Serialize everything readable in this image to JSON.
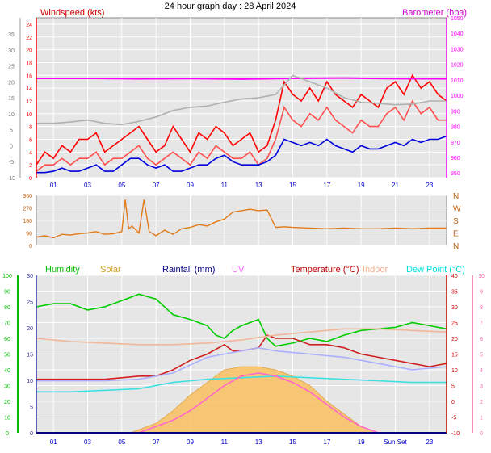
{
  "chart_data": [
    {
      "type": "line",
      "title": "24 hour graph day : 28 April 2024",
      "left_label": "Windspeed (kts)",
      "right_label": "Barometer (hpa)",
      "xlim": [
        0,
        24
      ],
      "x_ticks": [
        "01",
        "03",
        "05",
        "07",
        "09",
        "11",
        "13",
        "15",
        "17",
        "19",
        "21",
        "23"
      ],
      "y_left_outer_ticks": [
        "35",
        "30",
        "25",
        "20",
        "15",
        "10",
        "5",
        "0",
        "-5",
        "-10"
      ],
      "y_left_ticks": [
        "24",
        "22",
        "20",
        "18",
        "16",
        "14",
        "12",
        "10",
        "8",
        "6",
        "4",
        "2",
        "0"
      ],
      "ylim": [
        0,
        25
      ],
      "y_right_ticks": [
        "1050",
        "1040",
        "1030",
        "1020",
        "1010",
        "1000",
        "990",
        "980",
        "970",
        "960",
        "950"
      ],
      "y2lim": [
        947,
        1050
      ],
      "grid": true,
      "series": [
        {
          "name": "Wind gust",
          "color": "#ff0000",
          "axis": "left",
          "x": [
            0,
            0.5,
            1,
            1.5,
            2,
            2.5,
            3,
            3.5,
            4,
            4.5,
            5,
            5.5,
            6,
            6.5,
            7,
            7.5,
            8,
            8.5,
            9,
            9.5,
            10,
            10.5,
            11,
            11.5,
            12,
            12.5,
            13,
            13.5,
            14,
            14.5,
            15,
            15.5,
            16,
            16.5,
            17,
            17.5,
            18,
            18.5,
            19,
            19.5,
            20,
            20.5,
            21,
            21.5,
            22,
            22.5,
            23,
            23.5,
            24
          ],
          "y": [
            2,
            4,
            3,
            5,
            4,
            6,
            6,
            7,
            4,
            5,
            6,
            7,
            8,
            6,
            4,
            5,
            8,
            6,
            4,
            7,
            6,
            8,
            7,
            5,
            6,
            7,
            4,
            5,
            9,
            15,
            13,
            12,
            14,
            12,
            15,
            13,
            12,
            11,
            13,
            12,
            11,
            14,
            15,
            13,
            16,
            14,
            15,
            13,
            12
          ]
        },
        {
          "name": "Wind speed",
          "color": "#ff5050",
          "axis": "left",
          "x": [
            0,
            0.5,
            1,
            1.5,
            2,
            2.5,
            3,
            3.5,
            4,
            4.5,
            5,
            5.5,
            6,
            6.5,
            7,
            7.5,
            8,
            8.5,
            9,
            9.5,
            10,
            10.5,
            11,
            11.5,
            12,
            12.5,
            13,
            13.5,
            14,
            14.5,
            15,
            15.5,
            16,
            16.5,
            17,
            17.5,
            18,
            18.5,
            19,
            19.5,
            20,
            20.5,
            21,
            21.5,
            22,
            22.5,
            23,
            23.5,
            24
          ],
          "y": [
            1,
            2,
            2,
            3,
            2,
            3,
            3,
            4,
            2,
            3,
            3,
            4,
            5,
            3,
            2,
            3,
            4,
            3,
            2,
            4,
            3,
            5,
            4,
            3,
            3,
            4,
            2,
            3,
            6,
            11,
            9,
            8,
            10,
            9,
            11,
            9,
            8,
            7,
            9,
            8,
            8,
            10,
            11,
            9,
            12,
            10,
            11,
            9,
            9
          ]
        },
        {
          "name": "Average wind",
          "color": "#0000dd",
          "axis": "left",
          "x": [
            0,
            0.5,
            1,
            1.5,
            2,
            2.5,
            3,
            3.5,
            4,
            4.5,
            5,
            5.5,
            6,
            6.5,
            7,
            7.5,
            8,
            8.5,
            9,
            9.5,
            10,
            10.5,
            11,
            11.5,
            12,
            12.5,
            13,
            13.5,
            14,
            14.5,
            15,
            15.5,
            16,
            16.5,
            17,
            17.5,
            18,
            18.5,
            19,
            19.5,
            20,
            20.5,
            21,
            21.5,
            22,
            22.5,
            23,
            23.5,
            24
          ],
          "y": [
            0.8,
            0.8,
            1,
            1.5,
            1,
            1,
            1.5,
            2,
            1,
            1,
            2,
            3,
            3,
            2,
            1.5,
            2,
            1,
            1,
            1.5,
            2,
            2,
            3,
            3.5,
            2.5,
            2,
            2,
            2,
            2.5,
            3.5,
            6,
            5.5,
            5,
            5.5,
            5,
            6,
            5,
            4.5,
            4,
            5,
            4.5,
            4.5,
            5,
            5.5,
            5,
            6,
            5.5,
            6,
            6,
            6.5
          ]
        },
        {
          "name": "Barometer",
          "color": "#ff00ff",
          "axis": "right",
          "x": [
            0,
            3,
            6,
            9,
            12,
            15,
            18,
            21,
            24
          ],
          "y": [
            1011,
            1011,
            1010.7,
            1010.9,
            1010.5,
            1011,
            1011.2,
            1010.8,
            1010.7
          ]
        },
        {
          "name": "Barometer (grey)",
          "color": "#b0b0b0",
          "axis": "left",
          "x": [
            0,
            1,
            2,
            3,
            4,
            5,
            6,
            7,
            8,
            9,
            10,
            11,
            12,
            13,
            14,
            15,
            16,
            17,
            18,
            19,
            20,
            21,
            22,
            23,
            24
          ],
          "y": [
            8.5,
            8.5,
            8.7,
            9,
            8.5,
            8.3,
            8.8,
            9.5,
            10.5,
            11,
            11.2,
            11.8,
            12.3,
            12.5,
            13,
            16,
            15,
            14,
            12.5,
            11.8,
            11.6,
            11.4,
            11.5,
            12,
            12
          ]
        }
      ]
    },
    {
      "type": "line",
      "title": "",
      "ylabel": "",
      "xlim": [
        0,
        24
      ],
      "y_ticks": [
        "360",
        "270",
        "180",
        "90",
        "0"
      ],
      "ylim": [
        0,
        360
      ],
      "compass_labels": [
        "N",
        "W",
        "S",
        "E",
        "N"
      ],
      "grid": true,
      "series": [
        {
          "name": "Wind direction",
          "color": "#e07a1a",
          "x": [
            0,
            0.5,
            1,
            1.5,
            2,
            2.5,
            3,
            3.5,
            4,
            4.5,
            5,
            5.2,
            5.4,
            5.6,
            6,
            6.3,
            6.6,
            7,
            7.5,
            8,
            8.5,
            9,
            9.5,
            10,
            10.5,
            11,
            11.5,
            12,
            12.5,
            13,
            13.5,
            14,
            14.5,
            15,
            16,
            17,
            18,
            19,
            20,
            21,
            22,
            23,
            24
          ],
          "y": [
            60,
            70,
            55,
            80,
            75,
            85,
            90,
            100,
            80,
            85,
            100,
            330,
            120,
            140,
            90,
            330,
            100,
            70,
            110,
            80,
            120,
            130,
            150,
            140,
            170,
            190,
            240,
            250,
            260,
            250,
            255,
            130,
            135,
            130,
            125,
            120,
            125,
            120,
            120,
            125,
            120,
            125,
            125
          ]
        }
      ]
    },
    {
      "type": "line",
      "title": "",
      "legend": [
        "Humidity",
        "Solar",
        "Rainfall (mm)",
        "UV",
        "Temperature (°C)",
        "Indoor",
        "Dew Point (°C)"
      ],
      "legend_colors": [
        "#00c000",
        "#c8a020",
        "#000080",
        "#ff66ff",
        "#c00000",
        "#f0b090",
        "#00dede"
      ],
      "xlim": [
        0,
        24
      ],
      "x_ticks": [
        "01",
        "03",
        "05",
        "07",
        "09",
        "11",
        "13",
        "15",
        "17",
        "19",
        "Sun Set",
        "23"
      ],
      "y_humidity_ticks": [
        "100",
        "90",
        "80",
        "70",
        "60",
        "50",
        "40",
        "30",
        "20",
        "10",
        "0"
      ],
      "y_humidity_lim": [
        0,
        100
      ],
      "y_rain_ticks": [
        "30",
        "25",
        "20",
        "15",
        "10",
        "5",
        "0"
      ],
      "y_rain_lim": [
        0,
        30
      ],
      "y_temp_ticks": [
        "40",
        "35",
        "30",
        "25",
        "20",
        "15",
        "10",
        "5",
        "0",
        "-5",
        "-10"
      ],
      "y_temp_lim": [
        -10,
        40
      ],
      "y_uv_ticks": [
        "10",
        "9",
        "8",
        "7",
        "6",
        "5",
        "4",
        "3",
        "2",
        "1",
        "0"
      ],
      "grid": true,
      "series": [
        {
          "name": "Humidity",
          "color": "#00cc00",
          "axis": "humidity",
          "x": [
            0,
            1,
            2,
            3,
            4,
            5,
            6,
            7,
            8,
            9,
            10,
            10.5,
            11,
            11.5,
            12,
            12.5,
            13,
            13.5,
            14,
            15,
            16,
            17,
            18,
            19,
            20,
            21,
            22,
            23,
            24
          ],
          "y": [
            80,
            82,
            82,
            78,
            80,
            84,
            88,
            85,
            75,
            72,
            68,
            62,
            60,
            65,
            68,
            70,
            72,
            60,
            55,
            57,
            60,
            58,
            62,
            65,
            66,
            67,
            70,
            68,
            66
          ]
        },
        {
          "name": "Temperature (°C)",
          "color": "#d02020",
          "axis": "temp",
          "x": [
            0,
            1,
            2,
            3,
            4,
            5,
            6,
            7,
            8,
            9,
            10,
            11,
            11.5,
            12,
            13,
            13.5,
            14,
            15,
            16,
            17,
            18,
            19,
            20,
            21,
            22,
            23,
            24
          ],
          "y": [
            7,
            7,
            7,
            7,
            7,
            7.5,
            8,
            8,
            10,
            13,
            15,
            18,
            16,
            16,
            17,
            21,
            20,
            20,
            18,
            18,
            17,
            15,
            14,
            13,
            12,
            11,
            12
          ]
        },
        {
          "name": "Indoor",
          "color": "#f0b898",
          "axis": "temp",
          "x": [
            0,
            2,
            4,
            6,
            8,
            10,
            12,
            14,
            16,
            18,
            20,
            22,
            24
          ],
          "y": [
            20,
            19,
            18.5,
            18,
            18,
            18.5,
            19.5,
            21,
            22,
            23,
            23,
            22.5,
            22
          ]
        },
        {
          "name": "Dew Point (°C)",
          "color": "#40e0e0",
          "axis": "temp",
          "x": [
            0,
            2,
            4,
            6,
            8,
            10,
            12,
            14,
            16,
            18,
            20,
            22,
            24
          ],
          "y": [
            3,
            3,
            3.5,
            4,
            6,
            7,
            7.5,
            8,
            7.5,
            7,
            6.5,
            6,
            6
          ]
        },
        {
          "name": "Apparent temp",
          "color": "#aab0ff",
          "axis": "temp",
          "x": [
            0,
            2,
            4,
            6,
            8,
            10,
            12,
            13,
            14,
            16,
            18,
            20,
            22,
            24
          ],
          "y": [
            6.5,
            6.5,
            6.5,
            7,
            9,
            14,
            16,
            17,
            16,
            15,
            14,
            12,
            10,
            11
          ]
        },
        {
          "name": "UV",
          "color": "#ff66cc",
          "axis": "temp",
          "x": [
            0,
            6,
            8,
            9,
            10,
            11,
            12,
            13,
            14,
            15,
            16,
            17,
            18,
            19,
            20,
            24
          ],
          "y": [
            -10,
            -10,
            -6,
            -3,
            1,
            5,
            8,
            9,
            8,
            6,
            3,
            -1,
            -5,
            -8,
            -10,
            -10
          ]
        },
        {
          "name": "Solar",
          "color": "#f8c060",
          "axis": "temp",
          "fill": true,
          "x": [
            0,
            5.5,
            6,
            7,
            8,
            9,
            10,
            11,
            12,
            13,
            14,
            15,
            16,
            17,
            18,
            19,
            20,
            24
          ],
          "y": [
            -10,
            -10,
            -9,
            -7,
            -3,
            2,
            6,
            10,
            11,
            11,
            10,
            8,
            5,
            0,
            -4,
            -8,
            -10,
            -10
          ]
        },
        {
          "name": "Rainfall (mm)",
          "color": "#000080",
          "axis": "rain",
          "x": [
            0,
            24
          ],
          "y": [
            0,
            0
          ]
        }
      ]
    }
  ],
  "colors": {
    "plot_bg": "#e8e8e8",
    "grid": "#ffffff",
    "left_axis_red": "#ff0000",
    "axis_magenta": "#ff00ff",
    "axis_green": "#00c000",
    "axis_blue": "#0000cc",
    "axis_pink": "#ff66aa",
    "axis_gray": "#555555"
  }
}
